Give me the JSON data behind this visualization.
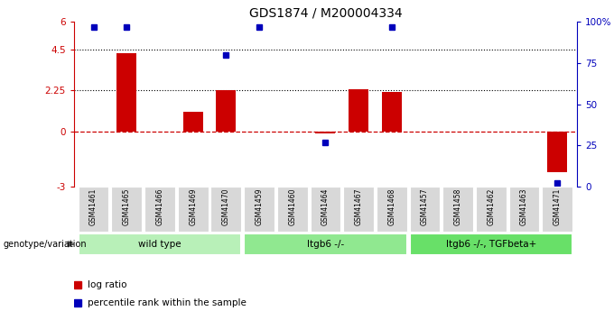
{
  "title": "GDS1874 / M200004334",
  "samples": [
    "GSM41461",
    "GSM41465",
    "GSM41466",
    "GSM41469",
    "GSM41470",
    "GSM41459",
    "GSM41460",
    "GSM41464",
    "GSM41467",
    "GSM41468",
    "GSM41457",
    "GSM41458",
    "GSM41462",
    "GSM41463",
    "GSM41471"
  ],
  "log_ratio": [
    0,
    4.3,
    0.0,
    1.1,
    2.25,
    0,
    0,
    -0.08,
    2.3,
    2.15,
    0,
    0,
    0,
    0,
    -2.2
  ],
  "percentile_rank": [
    97,
    97,
    null,
    null,
    80,
    97,
    null,
    27,
    null,
    97,
    null,
    null,
    null,
    null,
    2
  ],
  "groups": [
    {
      "label": "wild type",
      "start": 0,
      "end": 4,
      "color": "#b8f0b8"
    },
    {
      "label": "Itgb6 -/-",
      "start": 5,
      "end": 9,
      "color": "#90e890"
    },
    {
      "label": "Itgb6 -/-, TGFbeta+",
      "start": 10,
      "end": 14,
      "color": "#68e068"
    }
  ],
  "ylim_left": [
    -3,
    6
  ],
  "ylim_right": [
    0,
    100
  ],
  "yticks_left": [
    -3,
    0,
    2.25,
    4.5,
    6
  ],
  "yticks_right": [
    0,
    25,
    50,
    75,
    100
  ],
  "bar_color": "#cc0000",
  "dot_color": "#0000bb",
  "background_color": "#ffffff",
  "genotype_label": "genotype/variation",
  "legend_bar": "log ratio",
  "legend_dot": "percentile rank within the sample"
}
